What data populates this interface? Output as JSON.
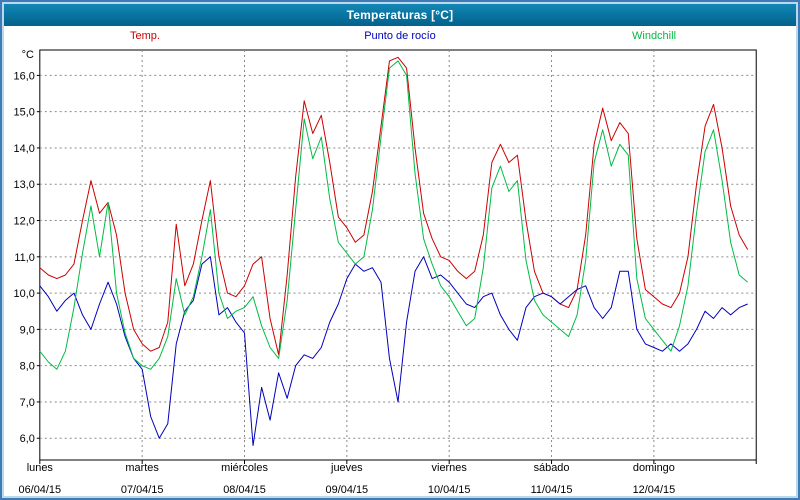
{
  "window": {
    "title": "Temperaturas [°C]",
    "titlebar_color_top": "#1387b5",
    "titlebar_color_bottom": "#02618c"
  },
  "chart_data": {
    "type": "line",
    "title": "Temperaturas [°C]",
    "ylabel_unit": "°C",
    "ylim": [
      5.4,
      16.7
    ],
    "ytick_values": [
      6,
      7,
      8,
      9,
      10,
      11,
      12,
      13,
      14,
      15,
      16
    ],
    "yticks": [
      "6,0",
      "7,0",
      "8,0",
      "9,0",
      "10,0",
      "11,0",
      "12,0",
      "13,0",
      "14,0",
      "15,0",
      "16,0"
    ],
    "grid": "dashed",
    "legend_position": "top",
    "sample_interval_hours": 2,
    "x_days": [
      {
        "name": "lunes",
        "date": "06/04/15"
      },
      {
        "name": "martes",
        "date": "07/04/15"
      },
      {
        "name": "miércoles",
        "date": "08/04/15"
      },
      {
        "name": "jueves",
        "date": "09/04/15"
      },
      {
        "name": "viernes",
        "date": "10/04/15"
      },
      {
        "name": "sábado",
        "date": "11/04/15"
      },
      {
        "name": "domingo",
        "date": "12/04/15"
      }
    ],
    "series": [
      {
        "name": "Temp.",
        "color": "#cc0000",
        "values": [
          10.7,
          10.5,
          10.4,
          10.5,
          10.8,
          12.0,
          13.1,
          12.2,
          12.5,
          11.6,
          10.0,
          9.0,
          8.6,
          8.4,
          8.5,
          9.2,
          11.9,
          10.2,
          10.8,
          12.0,
          13.1,
          11.0,
          10.0,
          9.9,
          10.2,
          10.8,
          11.0,
          9.3,
          8.3,
          10.5,
          13.2,
          15.3,
          14.4,
          14.9,
          13.6,
          12.1,
          11.8,
          11.4,
          11.6,
          12.8,
          14.6,
          16.4,
          16.5,
          16.2,
          14.0,
          12.2,
          11.5,
          11.0,
          10.9,
          10.6,
          10.4,
          10.6,
          11.6,
          13.6,
          14.1,
          13.6,
          13.8,
          12.0,
          10.6,
          10.0,
          9.9,
          9.7,
          9.6,
          10.1,
          11.6,
          14.1,
          15.1,
          14.2,
          14.7,
          14.4,
          11.5,
          10.1,
          9.9,
          9.7,
          9.6,
          10.0,
          11.0,
          13.0,
          14.6,
          15.2,
          14.0,
          12.4,
          11.6,
          11.2
        ]
      },
      {
        "name": "Punto de rocío",
        "color": "#0000bb",
        "values": [
          10.2,
          9.9,
          9.5,
          9.8,
          10.0,
          9.4,
          9.0,
          9.7,
          10.3,
          9.7,
          8.8,
          8.2,
          7.9,
          6.6,
          6.0,
          6.4,
          8.6,
          9.5,
          9.8,
          10.8,
          11.0,
          9.4,
          9.6,
          9.2,
          8.9,
          5.8,
          7.4,
          6.5,
          7.8,
          7.1,
          8.0,
          8.3,
          8.2,
          8.5,
          9.2,
          9.7,
          10.4,
          10.8,
          10.6,
          10.7,
          10.3,
          8.2,
          7.0,
          9.2,
          10.6,
          11.0,
          10.4,
          10.5,
          10.3,
          10.0,
          9.7,
          9.6,
          9.9,
          10.0,
          9.4,
          9.0,
          8.7,
          9.6,
          9.9,
          10.0,
          9.9,
          9.7,
          9.9,
          10.1,
          10.2,
          9.6,
          9.3,
          9.6,
          10.6,
          10.6,
          9.0,
          8.6,
          8.5,
          8.4,
          8.6,
          8.4,
          8.6,
          9.0,
          9.5,
          9.3,
          9.6,
          9.4,
          9.6,
          9.7
        ]
      },
      {
        "name": "Windchill",
        "color": "#00bb44",
        "values": [
          8.4,
          8.1,
          7.9,
          8.4,
          9.6,
          11.1,
          12.4,
          11.0,
          12.5,
          10.0,
          8.9,
          8.2,
          8.0,
          7.9,
          8.2,
          8.8,
          10.4,
          9.4,
          9.9,
          11.0,
          12.3,
          10.0,
          9.3,
          9.5,
          9.6,
          9.9,
          9.1,
          8.5,
          8.2,
          9.8,
          12.3,
          14.8,
          13.7,
          14.3,
          12.6,
          11.4,
          11.1,
          10.8,
          11.0,
          12.3,
          14.3,
          16.2,
          16.4,
          16.0,
          13.3,
          11.5,
          10.8,
          10.2,
          9.9,
          9.5,
          9.1,
          9.3,
          10.7,
          12.9,
          13.5,
          12.8,
          13.1,
          10.9,
          9.8,
          9.4,
          9.2,
          9.0,
          8.8,
          9.4,
          10.9,
          13.6,
          14.5,
          13.5,
          14.1,
          13.8,
          10.4,
          9.3,
          9.0,
          8.7,
          8.4,
          9.1,
          10.2,
          12.2,
          13.9,
          14.5,
          13.1,
          11.4,
          10.5,
          10.3
        ]
      }
    ]
  }
}
